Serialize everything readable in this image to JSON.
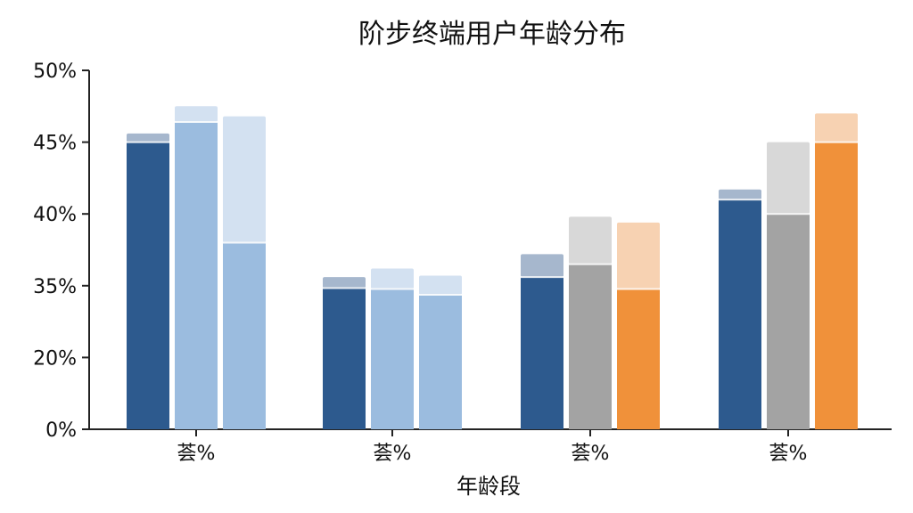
{
  "chart_data": {
    "type": "bar",
    "title": "阶步终端用户年龄分布",
    "xlabel": "年龄段",
    "ylabel": "",
    "y_ticks": [
      "0%",
      "20%",
      "35%",
      "40%",
      "45%",
      "50%"
    ],
    "categories": [
      "荟%",
      "荟%",
      "荟%",
      "荟%"
    ],
    "groups": [
      {
        "bars": [
          {
            "value": 45.0,
            "top": 45.6,
            "color": "#2d5a8e",
            "cap_color": "#a6b7cd"
          },
          {
            "value": 46.4,
            "top": 47.5,
            "color": "#9bbcdf",
            "cap_color": "#d3e1f1"
          },
          {
            "value": 38.0,
            "top": 46.8,
            "color": "#9bbcdf",
            "cap_color": "#d3e1f1"
          }
        ]
      },
      {
        "bars": [
          {
            "value": 34.5,
            "top": 35.6,
            "color": "#2d5a8e",
            "cap_color": "#a6b7cd"
          },
          {
            "value": 34.3,
            "top": 36.2,
            "color": "#9bbcdf",
            "cap_color": "#d3e1f1"
          },
          {
            "value": 33.1,
            "top": 35.7,
            "color": "#9bbcdf",
            "cap_color": "#d3e1f1"
          }
        ]
      },
      {
        "bars": [
          {
            "value": 35.6,
            "top": 37.2,
            "color": "#2d5a8e",
            "cap_color": "#a6b7cd"
          },
          {
            "value": 36.5,
            "top": 39.8,
            "color": "#a3a3a3",
            "cap_color": "#d8d8d8"
          },
          {
            "value": 34.3,
            "top": 39.4,
            "color": "#f0913a",
            "cap_color": "#f7d2b2"
          }
        ]
      },
      {
        "bars": [
          {
            "value": 41.0,
            "top": 41.7,
            "color": "#2d5a8e",
            "cap_color": "#a6b7cd"
          },
          {
            "value": 40.0,
            "top": 45.0,
            "color": "#a3a3a3",
            "cap_color": "#d8d8d8"
          },
          {
            "value": 45.0,
            "top": 47.0,
            "color": "#f0913a",
            "cap_color": "#f7d2b2"
          }
        ]
      }
    ]
  }
}
